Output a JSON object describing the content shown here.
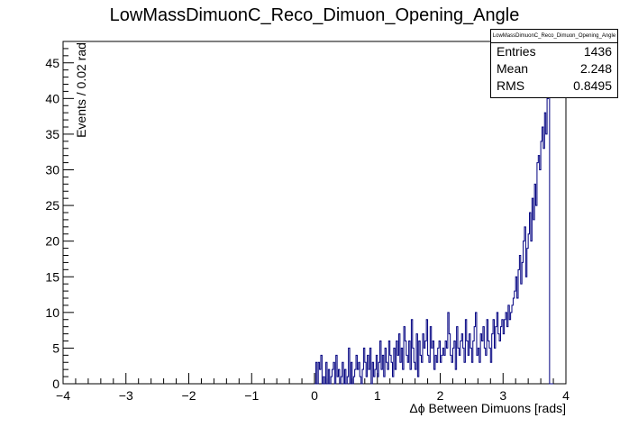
{
  "chart_data": {
    "type": "bar",
    "title": "LowMassDimuonC_Reco_Dimuon_Opening_Angle",
    "xlabel": "Δϕ Between Dimuons [rads]",
    "ylabel": "Events / 0.02 rad",
    "xlim": [
      -4,
      4
    ],
    "ylim": [
      0,
      48
    ],
    "x_ticks": [
      "-4",
      "-3",
      "-2",
      "-1",
      "0",
      "1",
      "2",
      "3",
      "4"
    ],
    "y_ticks": [
      "0",
      "5",
      "10",
      "15",
      "20",
      "25",
      "30",
      "35",
      "40",
      "45"
    ],
    "bin_width": 0.02,
    "histogram": {
      "x_start": 0.0,
      "values": [
        0,
        3,
        0,
        3,
        2,
        4,
        0,
        1,
        0,
        3,
        0,
        2,
        0,
        1,
        2,
        3,
        0,
        4,
        1,
        2,
        0,
        1,
        3,
        0,
        2,
        0,
        1,
        5,
        0,
        3,
        0,
        1,
        2,
        4,
        2,
        3,
        1,
        0,
        2,
        5,
        3,
        1,
        4,
        2,
        5,
        0,
        3,
        1,
        2,
        4,
        1,
        3,
        6,
        2,
        4,
        1,
        5,
        3,
        2,
        6,
        4,
        3,
        1,
        5,
        2,
        6,
        4,
        7,
        3,
        5,
        2,
        8,
        6,
        4,
        3,
        6,
        2,
        9,
        5,
        3,
        2,
        7,
        1,
        6,
        4,
        3,
        7,
        5,
        6,
        9,
        4,
        3,
        8,
        5,
        6,
        2,
        4,
        3,
        5,
        6,
        3,
        4,
        5,
        4,
        6,
        5,
        10,
        7,
        4,
        3,
        5,
        6,
        2,
        8,
        5,
        4,
        6,
        7,
        5,
        3,
        9,
        6,
        4,
        7,
        5,
        3,
        6,
        8,
        10,
        4,
        5,
        3,
        7,
        6,
        8,
        5,
        4,
        9,
        6,
        5,
        3,
        7,
        9,
        5,
        8,
        10,
        7,
        6,
        8,
        9,
        7,
        9,
        10,
        8,
        11,
        9,
        10,
        11,
        12,
        13,
        15,
        12,
        16,
        18,
        14,
        17,
        20,
        22,
        15,
        19,
        21,
        24,
        20,
        26,
        23,
        28,
        25,
        31,
        32,
        30,
        34,
        36,
        33,
        38,
        35,
        40,
        48,
        0,
        0,
        0
      ]
    },
    "stats": {
      "name": "LowMassDimuonC_Reco_Dimuon_Opening_Angle",
      "rows": [
        {
          "label": "Entries",
          "value": "1436"
        },
        {
          "label": "Mean",
          "value": "2.248"
        },
        {
          "label": "RMS",
          "value": "0.8495"
        }
      ]
    },
    "colors": {
      "line": "#000080",
      "axis": "#000000"
    }
  }
}
